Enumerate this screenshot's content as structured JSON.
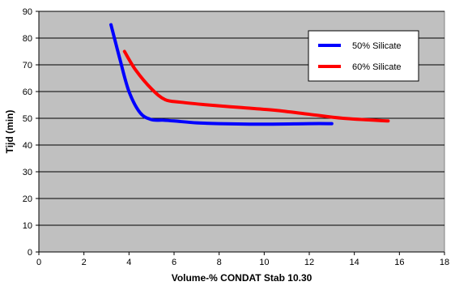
{
  "chart_data": {
    "type": "line",
    "title": "",
    "xlabel": "Volume-% CONDAT Stab 10.30",
    "ylabel": "Tijd (min)",
    "xlim": [
      0,
      18
    ],
    "ylim": [
      0,
      90
    ],
    "xticks": [
      0,
      2,
      4,
      6,
      8,
      10,
      12,
      14,
      16,
      18
    ],
    "yticks": [
      0,
      10,
      20,
      30,
      40,
      50,
      60,
      70,
      80,
      90
    ],
    "grid": true,
    "plot_background": "#C0C0C0",
    "legend_position": "top-right",
    "series": [
      {
        "name": "50% Silicate",
        "color": "#0000FF",
        "x": [
          3.2,
          3.6,
          4.0,
          4.5,
          5.0,
          5.5,
          6.0,
          7.0,
          8.0,
          10.0,
          12.0,
          13.0
        ],
        "y": [
          85,
          72,
          60,
          52,
          49.5,
          49.3,
          49,
          48.3,
          48,
          47.8,
          48,
          48
        ]
      },
      {
        "name": "60% Silicate",
        "color": "#FF0000",
        "x": [
          3.8,
          4.3,
          5.0,
          5.6,
          6.3,
          7.5,
          9.0,
          10.5,
          12.0,
          13.5,
          15.5
        ],
        "y": [
          75,
          68,
          61,
          57,
          56,
          55,
          54,
          53,
          51.5,
          50,
          49
        ]
      }
    ]
  }
}
